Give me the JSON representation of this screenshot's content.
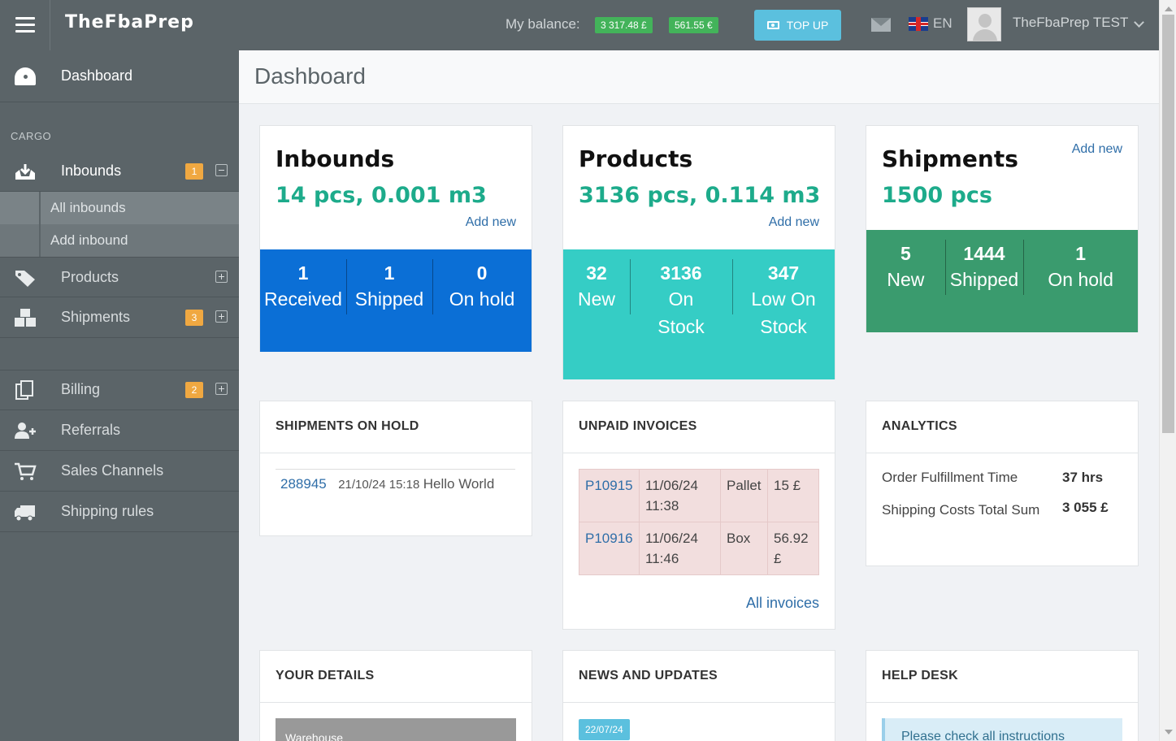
{
  "topbar": {
    "logo": "TheFbaPrep",
    "balance_label": "My balance:",
    "balances": [
      "3 317.48 £",
      "561.55 €"
    ],
    "topup_label": "TOP UP",
    "lang": "EN",
    "username": "TheFbaPrep TEST"
  },
  "sidebar": {
    "dashboard": "Dashboard",
    "section_cargo": "CARGO",
    "inbounds": {
      "label": "Inbounds",
      "badge": "1"
    },
    "inbound_sub": [
      "All inbounds",
      "Add inbound"
    ],
    "products": {
      "label": "Products"
    },
    "shipments": {
      "label": "Shipments",
      "badge": "3"
    },
    "billing": {
      "label": "Billing",
      "badge": "2"
    },
    "referrals": "Referrals",
    "sales_channels": "Sales Channels",
    "shipping_rules": "Shipping rules"
  },
  "main": {
    "page_title": "Dashboard",
    "inbounds_card": {
      "title": "Inbounds",
      "summary": "14 pcs, 0.001 m3",
      "add_new": "Add new",
      "color": "#0b6fd6",
      "stats": [
        {
          "num": "1",
          "label": "Received"
        },
        {
          "num": "1",
          "label": "Shipped"
        },
        {
          "num": "0",
          "label": "On hold"
        }
      ]
    },
    "products_card": {
      "title": "Products",
      "summary": "3136 pcs, 0.114 m3",
      "add_new": "Add new",
      "color": "#35cdc5",
      "stats": [
        {
          "num": "32",
          "label": "New"
        },
        {
          "num": "3136",
          "label": "On Stock"
        },
        {
          "num": "347",
          "label": "Low On Stock"
        }
      ]
    },
    "shipments_card": {
      "title": "Shipments",
      "summary": "1500 pcs",
      "add_new": "Add new",
      "color": "#3a9b6e",
      "stats": [
        {
          "num": "5",
          "label": "New"
        },
        {
          "num": "1444",
          "label": "Shipped"
        },
        {
          "num": "1",
          "label": "On hold"
        }
      ]
    },
    "shipments_on_hold": {
      "heading": "SHIPMENTS ON HOLD",
      "rows": [
        {
          "id": "288945",
          "date": "21/10/24 15:18",
          "text": "Hello World"
        }
      ]
    },
    "unpaid_invoices": {
      "heading": "UNPAID INVOICES",
      "rows": [
        {
          "id": "P10915",
          "date": "11/06/24 11:38",
          "type": "Pallet",
          "amount": "15 £"
        },
        {
          "id": "P10916",
          "date": "11/06/24 11:46",
          "type": "Box",
          "amount": "56.92 £"
        }
      ],
      "all_link": "All invoices"
    },
    "analytics": {
      "heading": "ANALYTICS",
      "rows": [
        {
          "label": "Order Fulfillment Time",
          "value": "37 hrs"
        },
        {
          "label": "Shipping Costs Total Sum",
          "value": "3 055 £"
        }
      ]
    },
    "your_details": {
      "heading": "YOUR DETAILS",
      "tab": "Warehouse"
    },
    "news": {
      "heading": "NEWS AND UPDATES",
      "date": "22/07/24"
    },
    "help_desk": {
      "heading": "HELP DESK",
      "text": "Please check all instructions"
    }
  }
}
